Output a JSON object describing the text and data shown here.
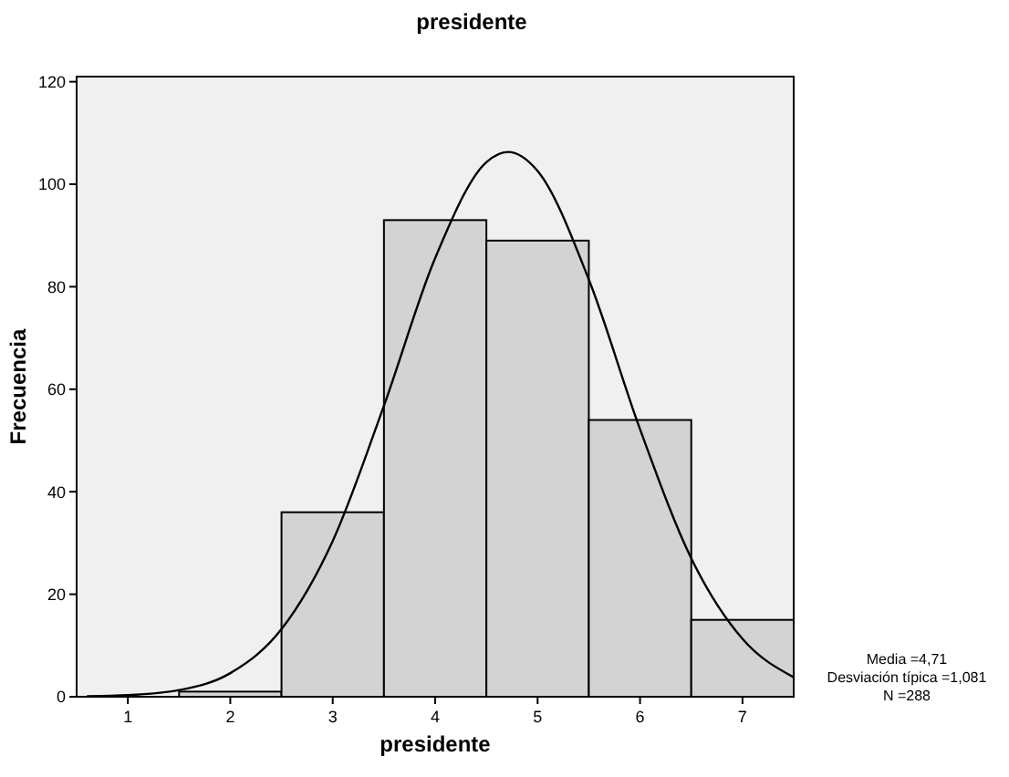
{
  "chart_data": {
    "type": "histogram",
    "title": "presidente",
    "xlabel": "presidente",
    "ylabel": "Frecuencia",
    "bins": [
      1.5,
      2.5,
      3.5,
      4.5,
      5.5,
      6.5,
      7.5
    ],
    "values": [
      1,
      36,
      93,
      89,
      54,
      15
    ],
    "color": "#d3d3d3",
    "series": [
      {
        "type": "line",
        "color": "#000000",
        "x": [
          0.6,
          1,
          1.5,
          2,
          2.5,
          3,
          3.5,
          4,
          4.5,
          4.71,
          5,
          5.5,
          6,
          6.5,
          7,
          7.5
        ],
        "values": [
          0.1,
          0.3,
          1.3,
          4.6,
          13.2,
          30.4,
          56.8,
          85.6,
          104.3,
          106.3,
          102.6,
          81.4,
          52.2,
          27.0,
          11.3,
          3.8
        ]
      }
    ],
    "xlim": [
      0.5,
      7.5
    ],
    "xticks": [
      1,
      2,
      3,
      4,
      5,
      6,
      7
    ],
    "ylim": [
      0,
      121
    ],
    "yticks": [
      0,
      20,
      40,
      60,
      80,
      100,
      120
    ],
    "grid": false,
    "annotations": [
      "Media =4,71",
      "Desviación típica =1,081",
      "N =288"
    ]
  }
}
